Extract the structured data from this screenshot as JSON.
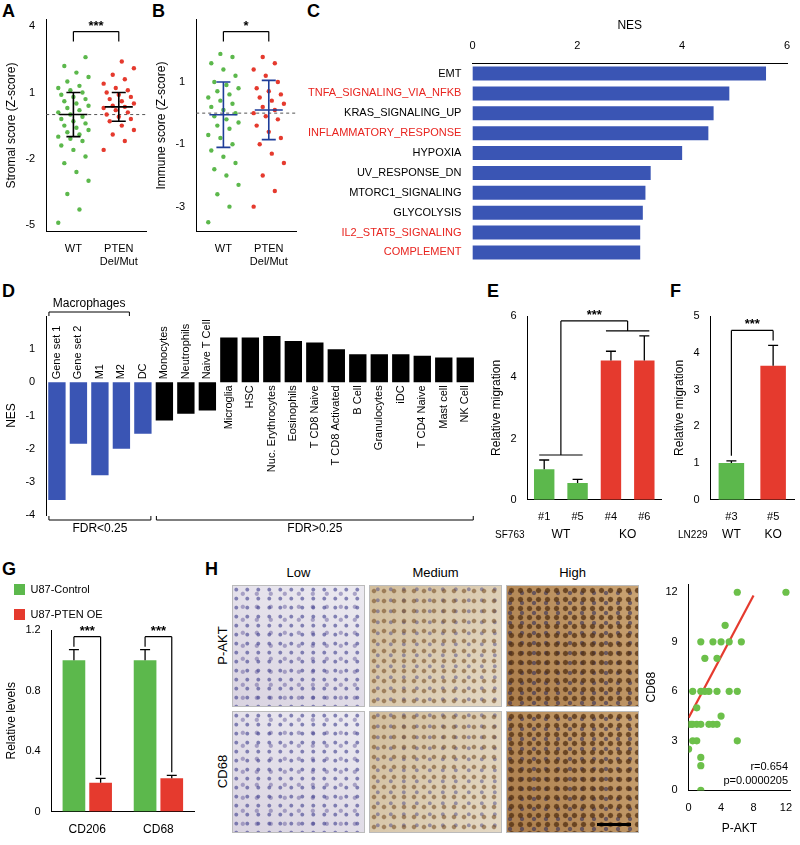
{
  "ihc": {
    "panel": "H",
    "columns": [
      "Low",
      "Medium",
      "High"
    ],
    "rows": [
      "P-AKT",
      "CD68"
    ]
  },
  "chart_data": [
    {
      "panel": "A",
      "type": "strip",
      "y_label": "Stromal score (Z-score)",
      "categories": [
        "WT",
        "PTEN Del/Mut"
      ],
      "values": [
        [
          -4.9,
          -4.3,
          -3.6,
          -3.0,
          -2.6,
          -2.2,
          -1.9,
          -1.6,
          -1.4,
          -1.2,
          -1.1,
          -1.0,
          -0.9,
          -0.8,
          -0.7,
          -0.6,
          -0.5,
          -0.4,
          -0.3,
          -0.2,
          -0.1,
          0,
          0.1,
          0.2,
          0.3,
          0.4,
          0.5,
          0.6,
          0.7,
          0.8,
          0.9,
          1.0,
          1.1,
          1.2,
          1.3,
          1.5,
          1.7,
          1.9,
          2.2,
          2.6
        ],
        [
          -1.6,
          -1.2,
          -0.9,
          -0.7,
          -0.5,
          -0.3,
          -0.2,
          -0.1,
          0,
          0.1,
          0.2,
          0.3,
          0.35,
          0.4,
          0.5,
          0.6,
          0.7,
          0.8,
          0.9,
          1.0,
          1.1,
          1.2,
          1.4,
          1.6,
          1.8,
          2.1,
          2.4
        ]
      ],
      "colors": [
        "#5cb84c",
        "#e53a2e"
      ],
      "summary": [
        {
          "mean": 0,
          "sd": 1.0
        },
        {
          "mean": 0.35,
          "sd": 0.65
        }
      ],
      "summary_color": "#000000",
      "reference_y": 0,
      "significance": [
        {
          "text": "***",
          "from": [
            "WT"
          ],
          "to": [
            "PTEN Del/Mut"
          ]
        }
      ],
      "ylim": [
        -5.3,
        4.3
      ],
      "yticks": [
        -5,
        -2,
        1,
        4
      ]
    },
    {
      "panel": "B",
      "type": "strip",
      "y_label": "Immune score (Z-score)",
      "categories": [
        "WT",
        "PTEN Del/Mut"
      ],
      "values": [
        [
          -3.5,
          -3.0,
          -2.6,
          -2.3,
          -2.0,
          -1.8,
          -1.6,
          -1.4,
          -1.2,
          -1.0,
          -0.8,
          -0.7,
          -0.5,
          -0.4,
          -0.3,
          -0.2,
          -0.1,
          0,
          0.1,
          0.2,
          0.3,
          0.4,
          0.5,
          0.6,
          0.7,
          0.8,
          0.9,
          1.0,
          1.2,
          1.4,
          1.6,
          1.8,
          1.9
        ],
        [
          -3.0,
          -2.5,
          -2.0,
          -1.6,
          -1.3,
          -1.0,
          -0.8,
          -0.6,
          -0.4,
          -0.2,
          -0.1,
          0,
          0.1,
          0.2,
          0.3,
          0.4,
          0.5,
          0.6,
          0.7,
          0.8,
          1.0,
          1.2,
          1.4,
          1.6,
          1.8
        ]
      ],
      "colors": [
        "#5cb84c",
        "#e53a2e"
      ],
      "summary": [
        {
          "mean": -0.05,
          "sd": 1.05
        },
        {
          "mean": 0.1,
          "sd": 0.95
        }
      ],
      "summary_color": "#1f3d99",
      "reference_y": 0,
      "significance": [
        {
          "text": "*",
          "from": [
            "WT"
          ],
          "to": [
            "PTEN Del/Mut"
          ]
        }
      ],
      "ylim": [
        -3.8,
        3.0
      ],
      "yticks": [
        -3,
        -1,
        1
      ]
    },
    {
      "panel": "C",
      "type": "bar",
      "orientation": "horizontal",
      "x_label": "NES",
      "categories": [
        "EMT",
        "TNFA_SIGNALING_VIA_NFKB",
        "KRAS_SIGNALING_UP",
        "INFLAMMATORY_RESPONSE",
        "HYPOXIA",
        "UV_RESPONSE_DN",
        "MTORC1_SIGNALING",
        "GLYCOLYSIS",
        "IL2_STAT5_SIGNALING",
        "COMPLEMENT"
      ],
      "values": [
        5.6,
        4.9,
        4.6,
        4.5,
        4.0,
        3.4,
        3.3,
        3.25,
        3.2,
        3.2
      ],
      "color": "#3a55b4",
      "label_colors": [
        "#000000",
        "#e8241f",
        "#000000",
        "#e8241f",
        "#000000",
        "#000000",
        "#000000",
        "#000000",
        "#e8241f",
        "#e8241f"
      ],
      "xlim": [
        0,
        6
      ],
      "xticks": [
        0,
        2,
        4,
        6
      ]
    },
    {
      "panel": "D",
      "type": "bar",
      "y_label": "NES",
      "tick_labels": "y",
      "categories": [
        "Gene set 1",
        "Gene set 2",
        "M1",
        "M2",
        "DC",
        "Monocytes",
        "Neutrophils",
        "Naive T Cell",
        "Microglia",
        "HSC",
        "Nuc. Erythrocytes",
        "Eosinophils",
        "T CD8 Naive",
        "T CD8 Activated",
        "B Cell",
        "Granulocytes",
        "iDC",
        "T CD4 Naive",
        "Mast cell",
        "NK Cell"
      ],
      "values": [
        -3.55,
        -1.85,
        -2.8,
        -2.0,
        -1.55,
        -1.15,
        -0.95,
        -0.85,
        1.35,
        1.35,
        1.4,
        1.25,
        1.2,
        1.0,
        0.85,
        0.85,
        0.85,
        0.8,
        0.75,
        0.75
      ],
      "colors": [
        "#3a55b4",
        "#3a55b4",
        "#3a55b4",
        "#3a55b4",
        "#3a55b4",
        "#000000",
        "#000000",
        "#000000",
        "#000000",
        "#000000",
        "#000000",
        "#000000",
        "#000000",
        "#000000",
        "#000000",
        "#000000",
        "#000000",
        "#000000",
        "#000000",
        "#000000"
      ],
      "groups_above": [
        {
          "text": "Macrophages",
          "first": "Gene set 1",
          "last": "M2"
        }
      ],
      "groups_below": [
        {
          "text": "FDR<0.25",
          "first": "Gene set 1",
          "last": "DC"
        },
        {
          "text": "FDR>0.25",
          "first": "Monocytes",
          "last": "NK Cell"
        }
      ],
      "ylim": [
        -4,
        2
      ],
      "yticks": [
        -4,
        -3,
        -2,
        -1,
        0,
        1
      ]
    },
    {
      "panel": "E",
      "type": "bar",
      "y_label": "Relative migration",
      "x_label": "SF763",
      "categories": [
        "#1",
        "#5",
        "#4",
        "#6"
      ],
      "values": [
        1.0,
        0.55,
        4.55,
        4.55
      ],
      "errors": [
        0.3,
        0.12,
        0.3,
        0.8
      ],
      "colors": [
        "#5cb84c",
        "#5cb84c",
        "#e53a2e",
        "#e53a2e"
      ],
      "groups_below": [
        {
          "text": "WT",
          "first": "#1",
          "last": "#5"
        },
        {
          "text": "KO",
          "first": "#4",
          "last": "#6"
        }
      ],
      "significance": [
        {
          "text": "***",
          "from": [
            "#1",
            "#5"
          ],
          "to": [
            "#4",
            "#6"
          ]
        }
      ],
      "ylim": [
        0,
        6
      ],
      "yticks": [
        0,
        2,
        4,
        6
      ]
    },
    {
      "panel": "F",
      "type": "bar",
      "y_label": "Relative migration",
      "x_label": "LN229",
      "categories": [
        "#3",
        "#5"
      ],
      "values": [
        1.0,
        3.65
      ],
      "errors": [
        0.06,
        0.55
      ],
      "colors": [
        "#5cb84c",
        "#e53a2e"
      ],
      "groups_below": [
        {
          "text": "WT",
          "first": "#3",
          "last": "#3"
        },
        {
          "text": "KO",
          "first": "#5",
          "last": "#5"
        }
      ],
      "significance": [
        {
          "text": "***",
          "from": [
            "#3"
          ],
          "to": [
            "#5"
          ]
        }
      ],
      "ylim": [
        0,
        5
      ],
      "yticks": [
        0,
        1,
        2,
        3,
        4,
        5
      ]
    },
    {
      "panel": "G",
      "type": "bar",
      "y_label": "Relative levels",
      "legend": "top",
      "categories": [
        "CD206",
        "CD68"
      ],
      "series": [
        {
          "name": "U87-Control",
          "color": "#5cb84c",
          "values": [
            1.0,
            1.0
          ],
          "errors": [
            0.07,
            0.07
          ]
        },
        {
          "name": "U87-PTEN OE",
          "color": "#e53a2e",
          "values": [
            0.19,
            0.22
          ],
          "errors": [
            0.03,
            0.02
          ]
        }
      ],
      "significance": [
        {
          "text": "***",
          "category": "CD206"
        },
        {
          "text": "***",
          "category": "CD68"
        }
      ],
      "ylim": [
        0,
        1.2
      ],
      "yticks": [
        0,
        0.4,
        0.8,
        1.2
      ]
    },
    {
      "panel": "H",
      "type": "scatter",
      "x_label": "P-AKT",
      "y_label": "CD68",
      "x": [
        0,
        0,
        0.3,
        0.5,
        0.5,
        0.5,
        1,
        1,
        1,
        1.5,
        1.5,
        1.5,
        1.5,
        1.5,
        1.5,
        2,
        2,
        2.5,
        2.5,
        3,
        3,
        3.5,
        3.5,
        3.5,
        4,
        4,
        4.5,
        5,
        5,
        6,
        6,
        6,
        6.5,
        12
      ],
      "y": [
        2.5,
        4,
        4,
        3,
        4,
        6,
        4,
        5,
        3,
        0,
        1.5,
        2,
        4,
        6,
        9,
        6,
        8,
        4,
        6,
        4,
        9,
        4,
        6,
        8,
        9,
        4.5,
        10,
        9,
        6,
        12,
        6,
        3,
        9,
        12
      ],
      "color": "#6cc04a",
      "fit_line": {
        "x": [
          0,
          8
        ],
        "y": [
          4.4,
          11.8
        ],
        "color": "#e53a2e"
      },
      "annotations": [
        "r=0.654",
        "p=0.0000205"
      ],
      "xlim": [
        0,
        12.5
      ],
      "xticks": [
        0,
        4,
        8,
        12
      ],
      "ylim": [
        0,
        12.5
      ],
      "yticks": [
        0,
        3,
        6,
        9,
        12
      ]
    }
  ]
}
